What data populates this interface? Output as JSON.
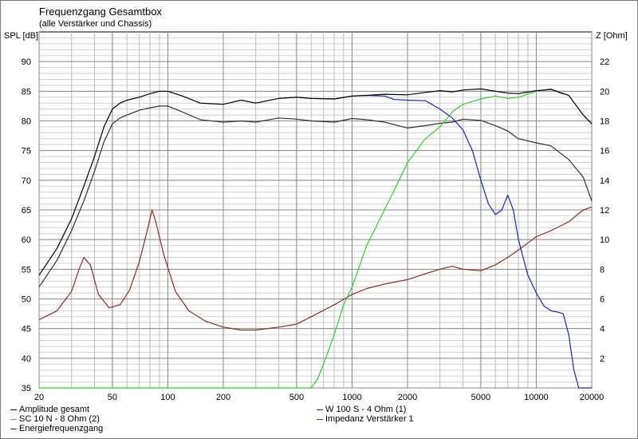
{
  "chart_data": {
    "type": "line",
    "title": "Frequenzgang Gesamtbox",
    "subtitle": "(alle Verstärker und Chassis)",
    "ylabel": "SPL [dB]",
    "y2label": "Z [Ohm]",
    "xscale": "log",
    "xlim": [
      20,
      20000
    ],
    "ylim": [
      35,
      95
    ],
    "y2lim": [
      0,
      24
    ],
    "xticks": [
      20,
      50,
      100,
      200,
      500,
      1000,
      2000,
      5000,
      10000,
      20000
    ],
    "xtick_labels": [
      "20",
      "50",
      "100",
      "200",
      "500",
      "1000",
      "2000",
      "5000",
      "10000",
      "20000"
    ],
    "yticks": [
      35,
      40,
      45,
      50,
      55,
      60,
      65,
      70,
      75,
      80,
      85,
      90
    ],
    "y2ticks": [
      2,
      4,
      6,
      8,
      10,
      12,
      14,
      16,
      18,
      20,
      22
    ],
    "grid": true,
    "series": [
      {
        "name": "Amplitude gesamt",
        "color": "#000000",
        "axis": "left",
        "x": [
          20,
          25,
          30,
          35,
          40,
          45,
          50,
          55,
          60,
          70,
          80,
          90,
          100,
          120,
          150,
          200,
          250,
          300,
          400,
          500,
          600,
          800,
          1000,
          1200,
          1500,
          2000,
          2500,
          3000,
          3500,
          4000,
          5000,
          6000,
          7000,
          8000,
          10000,
          12000,
          15000,
          18000,
          20000
        ],
        "y": [
          54,
          58.5,
          63.5,
          69,
          74,
          79,
          82,
          83,
          83.5,
          84,
          84.6,
          85,
          85,
          84.2,
          83,
          82.8,
          83.5,
          83,
          83.8,
          84,
          83.8,
          83.7,
          84.2,
          84.3,
          84.5,
          84.4,
          84.8,
          85.1,
          84.9,
          85.2,
          85.4,
          85.0,
          84.7,
          84.6,
          85.1,
          85.3,
          84.3,
          81,
          79.5
        ]
      },
      {
        "name": "W 100 S - 4 Ohm (1)",
        "color": "#2020cc",
        "axis": "left",
        "x": [
          400,
          500,
          600,
          800,
          1000,
          1200,
          1500,
          1700,
          2000,
          2500,
          3000,
          3500,
          4000,
          4500,
          5000,
          5500,
          6000,
          6500,
          7000,
          7500,
          8000,
          9000,
          10000,
          11000,
          12000,
          13000,
          14000,
          15000,
          16000,
          17000,
          18000,
          20000
        ],
        "y": [
          83.8,
          84,
          83.8,
          83.7,
          84.2,
          84.3,
          84.2,
          83.6,
          83.5,
          83.4,
          82,
          80.5,
          78.5,
          75,
          70,
          66,
          64.2,
          65,
          67.5,
          65,
          60,
          54,
          51,
          48.8,
          48,
          47.8,
          47.5,
          44,
          38,
          35,
          35,
          35
        ]
      },
      {
        "name": "SC 10 N - 8 Ohm (2)",
        "color": "#33cc33",
        "axis": "left",
        "x": [
          20,
          400,
          500,
          600,
          650,
          700,
          800,
          900,
          1000,
          1200,
          1500,
          1800,
          2000,
          2500,
          3000,
          3500,
          4000,
          5000,
          6000,
          7000,
          8000,
          10000,
          12000,
          14000
        ],
        "y": [
          35,
          35,
          35,
          35,
          36.5,
          39,
          44,
          49,
          52,
          59,
          65,
          70,
          73,
          77,
          79,
          81.5,
          82.8,
          83.7,
          84.2,
          83.8,
          84,
          85.0,
          85.4,
          84.5
        ]
      },
      {
        "name": "Impedanz Verstärker 1",
        "color": "#8b2b2b",
        "axis": "right",
        "x": [
          20,
          25,
          30,
          33,
          35,
          38,
          42,
          48,
          55,
          62,
          70,
          78,
          82,
          86,
          95,
          110,
          130,
          160,
          200,
          250,
          300,
          400,
          500,
          600,
          800,
          1000,
          1200,
          1500,
          2000,
          2500,
          3000,
          3500,
          4000,
          5000,
          6000,
          7000,
          8000,
          10000,
          12000,
          15000,
          18000,
          20000
        ],
        "y": [
          4.6,
          5.2,
          6.5,
          8.0,
          8.8,
          8.3,
          6.3,
          5.4,
          5.6,
          6.6,
          8.5,
          10.8,
          12.0,
          11.2,
          9.0,
          6.5,
          5.2,
          4.5,
          4.1,
          3.9,
          3.9,
          4.1,
          4.3,
          4.8,
          5.6,
          6.3,
          6.7,
          7.0,
          7.3,
          7.7,
          8.0,
          8.2,
          8.0,
          7.9,
          8.3,
          8.8,
          9.3,
          10.2,
          10.6,
          11.2,
          12.0,
          12.2
        ]
      },
      {
        "name": "Energiefrequenzgang",
        "color": "#303030",
        "axis": "left",
        "x": [
          20,
          25,
          30,
          35,
          40,
          45,
          50,
          55,
          60,
          70,
          80,
          90,
          100,
          120,
          150,
          200,
          250,
          300,
          400,
          500,
          600,
          800,
          1000,
          1200,
          1500,
          2000,
          2500,
          3000,
          3500,
          4000,
          5000,
          6000,
          7000,
          8000,
          10000,
          12000,
          15000,
          18000,
          20000
        ],
        "y": [
          52,
          56.5,
          61.5,
          66.5,
          71.5,
          76.5,
          79.5,
          80.5,
          81,
          81.8,
          82.2,
          82.5,
          82.5,
          81.5,
          80.2,
          79.8,
          80.0,
          79.8,
          80.5,
          80.3,
          80.0,
          79.8,
          80.4,
          80.2,
          79.8,
          78.8,
          79.2,
          79.6,
          79.8,
          80.3,
          80.1,
          79.2,
          78.3,
          77,
          76.3,
          75.8,
          73.5,
          70.5,
          66.5
        ]
      }
    ]
  }
}
